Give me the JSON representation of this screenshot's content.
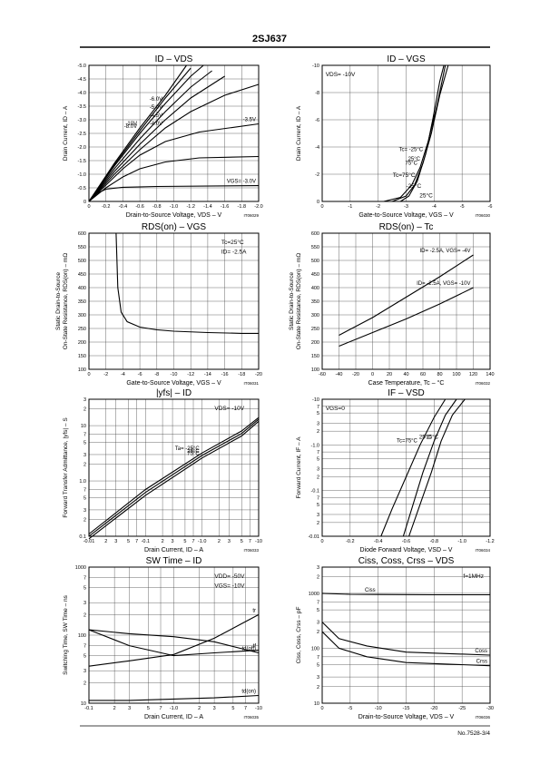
{
  "header": {
    "title": "2SJ637"
  },
  "footer": {
    "text": "No.7528-3/4"
  },
  "chart_data": [
    {
      "type": "line",
      "title": "ID – VDS",
      "xlabel": "Drain-to-Source Voltage, VDS – V",
      "ylabel": "Drain Current, ID – A",
      "code": "IT06029",
      "grid": true,
      "log_x": false,
      "log_y": false,
      "xlim": [
        0,
        -2
      ],
      "xticks": [
        0,
        -0.2,
        -0.4,
        -0.6,
        -0.8,
        {
          "value": -1,
          "label": "-1.0"
        },
        -1.2,
        -1.4,
        -1.6,
        -1.8,
        {
          "value": -2,
          "label": "-2.0"
        }
      ],
      "ylim": [
        0,
        -5
      ],
      "yticks": [
        0,
        -0.5,
        {
          "value": -1,
          "label": "-1.0"
        },
        -1.5,
        {
          "value": -2,
          "label": "-2.0"
        },
        -2.5,
        {
          "value": -3,
          "label": "-3.0"
        },
        -3.5,
        {
          "value": -4,
          "label": "-4.0"
        },
        -4.5,
        {
          "value": -5,
          "label": "-5.0"
        }
      ],
      "annotations": [],
      "series": [
        {
          "name": "-10V",
          "color": "#000000",
          "x": [
            0,
            -0.3,
            -0.6,
            -0.9,
            -1.15
          ],
          "values": [
            0,
            -1.4,
            -2.7,
            -3.9,
            -5.0
          ]
        },
        {
          "name": "-8.0V",
          "color": "#000000",
          "x": [
            0,
            -0.3,
            -0.6,
            -0.9,
            -1.2
          ],
          "values": [
            0,
            -1.35,
            -2.6,
            -3.8,
            -4.9
          ]
        },
        {
          "name": "-6.0V",
          "color": "#000000",
          "x": [
            0,
            -0.3,
            -0.6,
            -0.9,
            -1.2,
            -1.35
          ],
          "values": [
            0,
            -1.3,
            -2.5,
            -3.6,
            -4.6,
            -5.0
          ]
        },
        {
          "name": "-5.0V",
          "color": "#000000",
          "x": [
            0,
            -0.3,
            -0.6,
            -0.9,
            -1.2,
            -1.45
          ],
          "values": [
            0,
            -1.2,
            -2.3,
            -3.3,
            -4.2,
            -4.8
          ]
        },
        {
          "name": "-4.5V",
          "color": "#000000",
          "x": [
            0,
            -0.3,
            -0.6,
            -0.9,
            -1.2,
            -1.6
          ],
          "values": [
            0,
            -1.1,
            -2.1,
            -3.0,
            -3.8,
            -4.6
          ]
        },
        {
          "name": "-4.0V",
          "color": "#000000",
          "x": [
            0,
            -0.3,
            -0.6,
            -0.9,
            -1.2,
            -1.6,
            -2.0
          ],
          "values": [
            0,
            -1.0,
            -1.9,
            -2.7,
            -3.3,
            -3.9,
            -4.3
          ]
        },
        {
          "name": "-3.5V",
          "color": "#000000",
          "x": [
            0,
            -0.2,
            -0.4,
            -0.6,
            -0.9,
            -1.3,
            -2.0
          ],
          "values": [
            0,
            -0.6,
            -1.2,
            -1.7,
            -2.2,
            -2.55,
            -2.85
          ]
        },
        {
          "color": "#000000",
          "x": [
            0,
            -0.2,
            -0.4,
            -0.6,
            -0.9,
            -1.3,
            -2.0
          ],
          "values": [
            0,
            -0.5,
            -0.9,
            -1.2,
            -1.45,
            -1.6,
            -1.65
          ]
        },
        {
          "name": "VGS= -3.0V",
          "color": "#000000",
          "x": [
            0,
            -0.1,
            -0.2,
            -0.4,
            -0.8,
            -2.0
          ],
          "values": [
            0,
            -0.3,
            -0.45,
            -0.52,
            -0.55,
            -0.58
          ]
        }
      ]
    },
    {
      "type": "line",
      "title": "ID – VGS",
      "xlabel": "Gate-to-Source Voltage, VGS – V",
      "ylabel": "Drain Current, ID – A",
      "code": "IT06030",
      "grid": true,
      "log_x": false,
      "log_y": false,
      "xlim": [
        0,
        -6
      ],
      "xticks": [
        0,
        -1,
        -2,
        -3,
        -4,
        -5,
        -6
      ],
      "ylim": [
        0,
        -10
      ],
      "yticks": [
        0,
        -2,
        -4,
        -6,
        -8,
        -10
      ],
      "annotations": [
        "VDS= -10V",
        "Tc=75°C",
        "-25°C",
        "25°C"
      ],
      "series": [
        {
          "name": "Tc= -25°C",
          "color": "#000000",
          "x": [
            -2.8,
            -3.1,
            -3.4,
            -3.7,
            -3.95,
            -4.2,
            -4.35
          ],
          "values": [
            0,
            -0.4,
            -1.5,
            -3.5,
            -6,
            -8.8,
            -10
          ]
        },
        {
          "name": "75°C",
          "color": "#000000",
          "x": [
            -2.2,
            -2.8,
            -3.2,
            -3.5,
            -3.8,
            -4.1,
            -4.4
          ],
          "values": [
            0,
            -0.3,
            -1.2,
            -2.5,
            -4.5,
            -7,
            -10
          ]
        },
        {
          "name": "25°C",
          "color": "#000000",
          "x": [
            -2.5,
            -3.0,
            -3.3,
            -3.6,
            -3.9,
            -4.2,
            -4.5
          ],
          "values": [
            0,
            -0.4,
            -1.2,
            -2.8,
            -5,
            -7.8,
            -10
          ]
        }
      ]
    },
    {
      "type": "line",
      "title": "RDS(on) – VGS",
      "xlabel": "Gate-to-Source Voltage, VGS – V",
      "ylabel": [
        "Static Drain-to-Source",
        "On-State Resistance, RDS(on) – mΩ"
      ],
      "code": "IT06031",
      "grid": true,
      "log_x": false,
      "log_y": false,
      "xlim": [
        0,
        -20
      ],
      "xticks": [
        0,
        -2,
        -4,
        -6,
        -8,
        -10,
        -12,
        -14,
        -16,
        -18,
        -20
      ],
      "ylim": [
        100,
        600
      ],
      "yticks": [
        100,
        150,
        200,
        250,
        300,
        350,
        400,
        450,
        500,
        550,
        600
      ],
      "annotations": [
        "Tc=25°C",
        "ID= -2.5A"
      ],
      "series": [
        {
          "color": "#000000",
          "x": [
            -3.2,
            -3.4,
            -3.8,
            -4.5,
            -6,
            -8,
            -10,
            -14,
            -18,
            -20
          ],
          "values": [
            600,
            400,
            310,
            275,
            255,
            245,
            240,
            235,
            232,
            232
          ]
        }
      ]
    },
    {
      "type": "line",
      "title": "RDS(on) – Tc",
      "xlabel": "Case Temperature, Tc – °C",
      "ylabel": [
        "Static Drain-to-Source",
        "On-State Resistance, RDS(on) – mΩ"
      ],
      "code": "IT06032",
      "grid": true,
      "log_x": false,
      "log_y": false,
      "xlim": [
        -60,
        140
      ],
      "xticks": [
        -60,
        -40,
        -20,
        0,
        20,
        40,
        60,
        80,
        100,
        120,
        140
      ],
      "ylim": [
        100,
        600
      ],
      "yticks": [
        100,
        150,
        200,
        250,
        300,
        350,
        400,
        450,
        500,
        550,
        600
      ],
      "annotations": [],
      "series": [
        {
          "name": "ID= -2.5A, VGS= -4V",
          "color": "#000000",
          "x": [
            -40,
            0,
            40,
            80,
            120
          ],
          "values": [
            225,
            290,
            365,
            440,
            520
          ]
        },
        {
          "name": "ID= -2.5A, VGS= -10V",
          "color": "#000000",
          "x": [
            -40,
            0,
            40,
            80,
            120
          ],
          "values": [
            185,
            235,
            285,
            340,
            400
          ]
        }
      ]
    },
    {
      "type": "line",
      "title": "|yfs| – ID",
      "xlabel": "Drain Current, ID – A",
      "ylabel": "Forward Transfer Admittance, |yfs| – S",
      "code": "IT06033",
      "grid": true,
      "log_x": true,
      "log_y": true,
      "xlim": [
        -0.01,
        -10
      ],
      "xticks": [
        -0.01,
        {
          "value": -0.02,
          "label": "2"
        },
        {
          "value": -0.03,
          "label": "3"
        },
        {
          "value": -0.05,
          "label": "5"
        },
        {
          "value": -0.07,
          "label": "7"
        },
        -0.1,
        {
          "value": -0.2,
          "label": "2"
        },
        {
          "value": -0.3,
          "label": "3"
        },
        {
          "value": -0.5,
          "label": "5"
        },
        {
          "value": -0.7,
          "label": "7"
        },
        {
          "value": -1,
          "label": "-1.0"
        },
        {
          "value": -2,
          "label": "2"
        },
        {
          "value": -3,
          "label": "3"
        },
        {
          "value": -5,
          "label": "5"
        },
        {
          "value": -7,
          "label": "7"
        },
        -10
      ],
      "ylim": [
        0.1,
        30
      ],
      "yticks": [
        0.1,
        {
          "value": 0.2,
          "label": "2"
        },
        {
          "value": 0.3,
          "label": "3"
        },
        {
          "value": 0.5,
          "label": "5"
        },
        {
          "value": 0.7,
          "label": "7"
        },
        {
          "value": 1,
          "label": "1.0"
        },
        2,
        3,
        5,
        7,
        10,
        {
          "value": 20,
          "label": "2"
        },
        {
          "value": 30,
          "label": "3"
        }
      ],
      "annotations": [
        "VDS= -10V"
      ],
      "series": [
        {
          "name": "Ta= -25°C",
          "color": "#000000",
          "x": [
            -0.01,
            -0.1,
            -1,
            -5,
            -10
          ],
          "values": [
            0.11,
            0.7,
            3.2,
            8,
            14
          ]
        },
        {
          "name": "25°C",
          "color": "#000000",
          "x": [
            -0.01,
            -0.1,
            -1,
            -5,
            -10
          ],
          "values": [
            0.1,
            0.62,
            2.9,
            7.2,
            13
          ]
        },
        {
          "name": "75°C",
          "color": "#000000",
          "x": [
            -0.01,
            -0.1,
            -1,
            -5,
            -10
          ],
          "values": [
            0.09,
            0.55,
            2.6,
            6.5,
            12
          ]
        }
      ]
    },
    {
      "type": "line",
      "title": "IF – VSD",
      "xlabel": "Diode Forward Voltage, VSD – V",
      "ylabel": "Forward Current, IF – A",
      "code": "IT06034",
      "grid": true,
      "log_x": false,
      "log_y": true,
      "xlim": [
        0,
        -1.2
      ],
      "xticks": [
        0,
        -0.2,
        -0.4,
        -0.6,
        -0.8,
        {
          "value": -1,
          "label": "-1.0"
        },
        -1.2
      ],
      "ylim": [
        -0.01,
        -10
      ],
      "yticks": [
        -0.01,
        {
          "value": -0.02,
          "label": "2"
        },
        {
          "value": -0.03,
          "label": "3"
        },
        {
          "value": -0.05,
          "label": "5"
        },
        {
          "value": -0.07,
          "label": "7"
        },
        -0.1,
        {
          "value": -0.2,
          "label": "2"
        },
        {
          "value": -0.3,
          "label": "3"
        },
        {
          "value": -0.5,
          "label": "5"
        },
        {
          "value": -0.7,
          "label": "7"
        },
        {
          "value": -1,
          "label": "-1.0"
        },
        {
          "value": -2,
          "label": "2"
        },
        {
          "value": -3,
          "label": "3"
        },
        {
          "value": -5,
          "label": "5"
        },
        {
          "value": -7,
          "label": "7"
        },
        -10
      ],
      "annotations": [
        "VGS=0"
      ],
      "series": [
        {
          "name": "Tc=75°C",
          "color": "#000000",
          "x": [
            -0.42,
            -0.5,
            -0.6,
            -0.7,
            -0.8,
            -0.88
          ],
          "values": [
            -0.01,
            -0.04,
            -0.2,
            -1,
            -4,
            -10
          ]
        },
        {
          "name": "25°C",
          "color": "#000000",
          "x": [
            -0.58,
            -0.65,
            -0.72,
            -0.8,
            -0.88,
            -0.96
          ],
          "values": [
            -0.01,
            -0.05,
            -0.25,
            -1.2,
            -4.5,
            -10
          ]
        },
        {
          "name": "-25°C",
          "color": "#000000",
          "x": [
            -0.62,
            -0.7,
            -0.78,
            -0.85,
            -0.93,
            -1.02
          ],
          "values": [
            -0.01,
            -0.05,
            -0.25,
            -1.2,
            -4.5,
            -10
          ]
        }
      ]
    },
    {
      "type": "line",
      "title": "SW Time – ID",
      "xlabel": "Drain Current, ID – A",
      "ylabel": "Switching Time, SW Time – ns",
      "code": "IT06035",
      "grid": true,
      "log_x": true,
      "log_y": true,
      "xlim": [
        -0.1,
        -10
      ],
      "xticks": [
        -0.1,
        {
          "value": -0.2,
          "label": "2"
        },
        {
          "value": -0.3,
          "label": "3"
        },
        {
          "value": -0.5,
          "label": "5"
        },
        {
          "value": -0.7,
          "label": "7"
        },
        {
          "value": -1,
          "label": "-1.0"
        },
        {
          "value": -2,
          "label": "2"
        },
        {
          "value": -3,
          "label": "3"
        },
        {
          "value": -5,
          "label": "5"
        },
        {
          "value": -7,
          "label": "7"
        },
        -10
      ],
      "ylim": [
        10,
        1000
      ],
      "yticks": [
        10,
        {
          "value": 20,
          "label": "2"
        },
        {
          "value": 30,
          "label": "3"
        },
        {
          "value": 50,
          "label": "5"
        },
        {
          "value": 70,
          "label": "7"
        },
        100,
        {
          "value": 200,
          "label": "2"
        },
        {
          "value": 300,
          "label": "3"
        },
        {
          "value": 500,
          "label": "5"
        },
        {
          "value": 700,
          "label": "7"
        },
        1000
      ],
      "annotations": [
        "VDD= -50V",
        "VGS= -10V"
      ],
      "series": [
        {
          "name": "td(off)",
          "color": "#000000",
          "x": [
            -0.1,
            -0.3,
            -1,
            -3,
            -10
          ],
          "values": [
            120,
            105,
            95,
            80,
            55
          ]
        },
        {
          "name": "tf",
          "color": "#000000",
          "x": [
            -0.1,
            -0.3,
            -1,
            -3,
            -10
          ],
          "values": [
            120,
            70,
            50,
            55,
            60
          ]
        },
        {
          "name": "tr",
          "color": "#000000",
          "x": [
            -0.1,
            -0.3,
            -1,
            -3,
            -10
          ],
          "values": [
            35,
            42,
            52,
            90,
            200
          ]
        },
        {
          "name": "td(on)",
          "color": "#000000",
          "x": [
            -0.1,
            -0.3,
            -1,
            -3,
            -10
          ],
          "values": [
            11,
            11,
            11.5,
            12,
            13
          ]
        }
      ]
    },
    {
      "type": "line",
      "title": "Ciss, Coss, Crss – VDS",
      "xlabel": "Drain-to-Source Voltage, VDS – V",
      "ylabel": "Ciss, Coss, Crss – pF",
      "code": "IT06036",
      "grid": true,
      "log_x": false,
      "log_y": true,
      "xlim": [
        0,
        -30
      ],
      "xticks": [
        0,
        -5,
        -10,
        -15,
        -20,
        -25,
        -30
      ],
      "ylim": [
        10,
        3000
      ],
      "yticks": [
        10,
        {
          "value": 20,
          "label": "2"
        },
        {
          "value": 30,
          "label": "3"
        },
        {
          "value": 50,
          "label": "5"
        },
        {
          "value": 70,
          "label": "7"
        },
        100,
        {
          "value": 200,
          "label": "2"
        },
        {
          "value": 300,
          "label": "3"
        },
        {
          "value": 500,
          "label": "5"
        },
        {
          "value": 700,
          "label": "7"
        },
        1000,
        {
          "value": 2000,
          "label": "2"
        },
        {
          "value": 3000,
          "label": "3"
        }
      ],
      "annotations": [
        "f=1MHz"
      ],
      "series": [
        {
          "name": "Ciss",
          "color": "#000000",
          "x": [
            0,
            -5,
            -10,
            -20,
            -30
          ],
          "values": [
            1000,
            960,
            950,
            940,
            940
          ]
        },
        {
          "name": "Coss",
          "color": "#000000",
          "x": [
            0,
            -3,
            -8,
            -15,
            -30
          ],
          "values": [
            300,
            150,
            110,
            85,
            75
          ]
        },
        {
          "name": "Crss",
          "color": "#000000",
          "x": [
            0,
            -3,
            -8,
            -15,
            -30
          ],
          "values": [
            200,
            100,
            70,
            55,
            48
          ]
        }
      ]
    }
  ]
}
